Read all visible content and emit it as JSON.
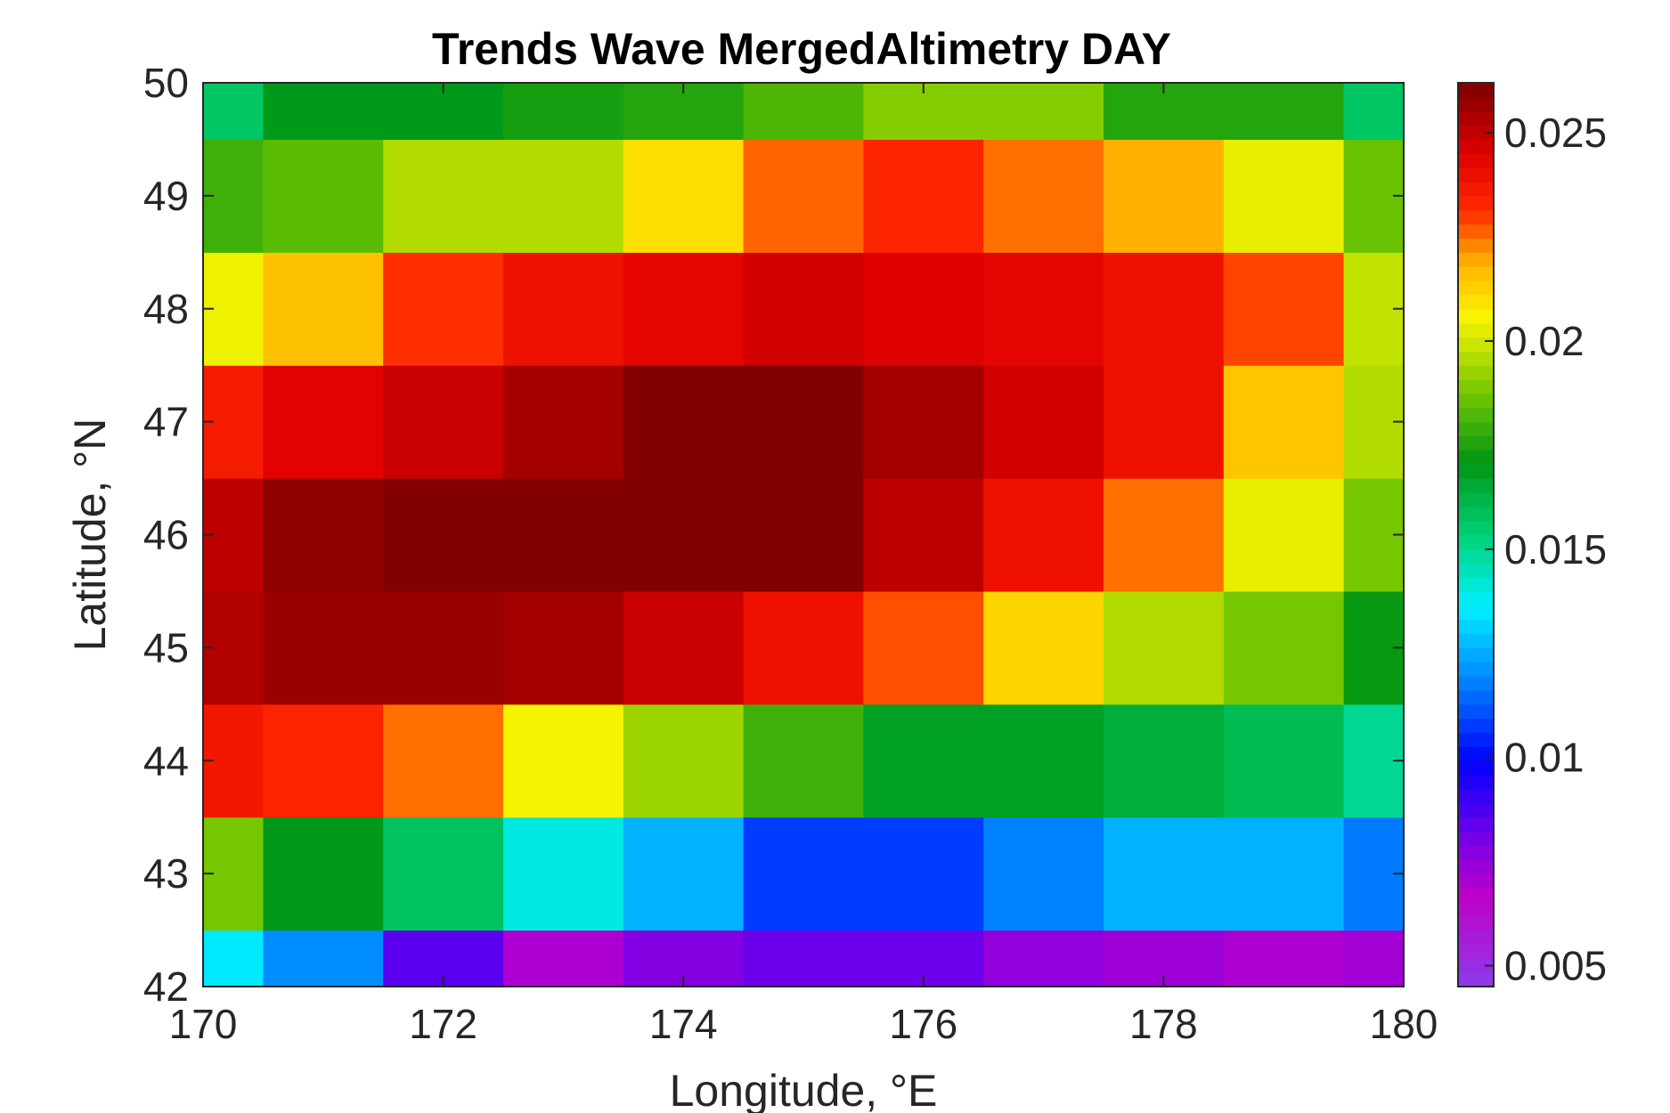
{
  "chart_data": {
    "type": "heatmap",
    "title": "Trends Wave MergedAltimetry DAY",
    "xlabel": "Longitude, °E",
    "ylabel": "Latitude, °N",
    "xlim": [
      170,
      180
    ],
    "ylim": [
      42,
      50
    ],
    "x_ticks": [
      "170",
      "172",
      "174",
      "176",
      "178",
      "180"
    ],
    "y_ticks": [
      "42",
      "43",
      "44",
      "45",
      "46",
      "47",
      "48",
      "49",
      "50"
    ],
    "grid": false,
    "x": [
      170,
      171,
      172,
      173,
      174,
      175,
      176,
      177,
      178,
      179,
      180
    ],
    "y": [
      42,
      43,
      44,
      45,
      46,
      47,
      48,
      49,
      50
    ],
    "z": [
      [
        0.0135,
        0.012,
        0.0085,
        0.007,
        0.0078,
        0.0082,
        0.0082,
        0.0075,
        0.0073,
        0.007,
        0.0072
      ],
      [
        0.0188,
        0.017,
        0.0158,
        0.014,
        0.0126,
        0.0108,
        0.0108,
        0.0118,
        0.0126,
        0.0126,
        0.0117
      ],
      [
        0.0237,
        0.0233,
        0.0225,
        0.0205,
        0.0193,
        0.018,
        0.0168,
        0.0168,
        0.0164,
        0.016,
        0.015
      ],
      [
        0.0253,
        0.0257,
        0.0257,
        0.0255,
        0.0249,
        0.0239,
        0.0228,
        0.0212,
        0.0196,
        0.0188,
        0.0172
      ],
      [
        0.0251,
        0.0259,
        0.0261,
        0.0261,
        0.0261,
        0.0261,
        0.0251,
        0.0239,
        0.0225,
        0.0203,
        0.0188
      ],
      [
        0.0236,
        0.0244,
        0.0249,
        0.0255,
        0.0261,
        0.0261,
        0.0255,
        0.0247,
        0.0239,
        0.0215,
        0.0196
      ],
      [
        0.0204,
        0.0216,
        0.0231,
        0.0239,
        0.0243,
        0.0247,
        0.0245,
        0.0243,
        0.0239,
        0.0229,
        0.0198
      ],
      [
        0.018,
        0.0184,
        0.0196,
        0.0196,
        0.021,
        0.0226,
        0.0233,
        0.0225,
        0.0219,
        0.0203,
        0.0186
      ],
      [
        0.0157,
        0.017,
        0.017,
        0.0174,
        0.0176,
        0.0182,
        0.019,
        0.019,
        0.0176,
        0.0176,
        0.0157
      ]
    ],
    "colorbar": {
      "min": 0.0045,
      "max": 0.0262,
      "ticks": [
        "0.005",
        "0.01",
        "0.015",
        "0.02",
        "0.025"
      ],
      "tick_values": [
        0.005,
        0.01,
        0.015,
        0.02,
        0.025
      ],
      "colormap": "jet-like (purple-blue-cyan-green-yellow-red-darkred)"
    }
  }
}
